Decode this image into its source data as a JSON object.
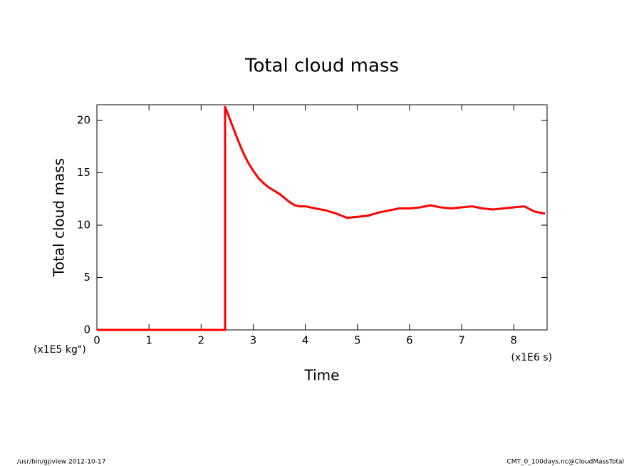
{
  "chart_data": {
    "type": "line",
    "title": "Total cloud mass",
    "x_label": "Time",
    "y_label": "Total cloud mass",
    "x_units": "(x1E6 s)",
    "y_units": "(x1E5 kg\")",
    "footer_left": "/usr/bin/gpview  2012-10-17",
    "footer_right": "CMT_0_100days.nc@CloudMassTotal",
    "x": [
      0,
      2.46,
      2.46,
      2.5,
      2.6,
      2.7,
      2.8,
      2.9,
      3.0,
      3.1,
      3.2,
      3.3,
      3.4,
      3.5,
      3.6,
      3.7,
      3.8,
      3.9,
      4.0,
      4.2,
      4.4,
      4.6,
      4.8,
      5.0,
      5.2,
      5.4,
      5.6,
      5.8,
      6.0,
      6.2,
      6.4,
      6.6,
      6.8,
      7.0,
      7.2,
      7.4,
      7.6,
      7.8,
      8.0,
      8.2,
      8.4,
      8.6
    ],
    "series": [
      {
        "name": "Total cloud mass",
        "color": "#ff0000",
        "values": [
          0,
          0,
          21.3,
          20.8,
          19.5,
          18.2,
          17.0,
          16.0,
          15.2,
          14.5,
          14.0,
          13.6,
          13.3,
          13.0,
          12.6,
          12.2,
          11.9,
          11.8,
          11.8,
          11.6,
          11.4,
          11.1,
          10.7,
          10.8,
          10.9,
          11.2,
          11.4,
          11.6,
          11.6,
          11.7,
          11.9,
          11.7,
          11.6,
          11.7,
          11.8,
          11.6,
          11.5,
          11.6,
          11.7,
          11.8,
          11.3,
          11.1
        ]
      }
    ],
    "xlim": [
      0,
      8.64
    ],
    "xticks": [
      0,
      1,
      2,
      3,
      4,
      5,
      6,
      7,
      8
    ],
    "ylim": [
      0,
      21.5
    ],
    "yticks": [
      0,
      5,
      10,
      15,
      20
    ]
  }
}
